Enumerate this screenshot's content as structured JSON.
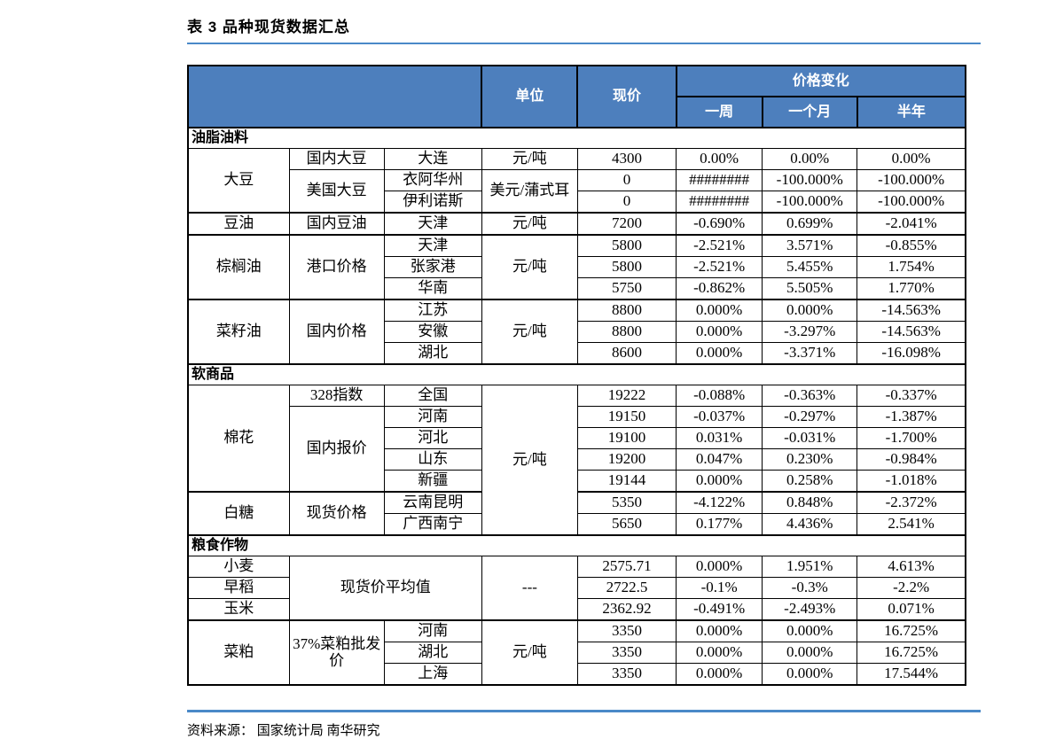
{
  "page": {
    "title": "表 3 品种现货数据汇总",
    "source": "资料来源： 国家统计局 南华研究"
  },
  "colors": {
    "header_bg": "#4D7FBD",
    "header_text": "#ffffff",
    "accent_rule": "#4A89C8",
    "grid": "#000000"
  },
  "table": {
    "column_headers": [
      "",
      "单位",
      "现价",
      "价格变化",
      "一周",
      "一个月",
      "半年"
    ],
    "rows": [
      {
        "cls": "hdr",
        "cells": [
          {
            "t": "",
            "cs": 3,
            "rs": 2
          },
          {
            "t": "单位",
            "rs": 2
          },
          {
            "t": "现价",
            "rs": 2
          },
          {
            "t": "价格变化",
            "cs": 3
          }
        ]
      },
      {
        "cls": "hdr",
        "cells": [
          {
            "t": "一周"
          },
          {
            "t": "一个月"
          },
          {
            "t": "半年"
          }
        ]
      },
      {
        "cls": "section",
        "cells": [
          {
            "t": "油脂油料",
            "cs": 8
          }
        ]
      },
      {
        "cls": "",
        "cells": [
          {
            "t": "大豆",
            "rs": 3
          },
          {
            "t": "国内大豆"
          },
          {
            "t": "大连"
          },
          {
            "t": "元/吨"
          },
          {
            "t": "4300"
          },
          {
            "t": "0.00%"
          },
          {
            "t": "0.00%"
          },
          {
            "t": "0.00%"
          }
        ]
      },
      {
        "cls": "",
        "cells": [
          {
            "t": "美国大豆",
            "rs": 2
          },
          {
            "t": "衣阿华州"
          },
          {
            "t": "美元/蒲式耳",
            "rs": 2,
            "cls": "nowrap"
          },
          {
            "t": "0"
          },
          {
            "t": "########"
          },
          {
            "t": "-100.000%"
          },
          {
            "t": "-100.000%"
          }
        ]
      },
      {
        "cls": "",
        "cells": [
          {
            "t": "伊利诺斯"
          },
          {
            "t": "0"
          },
          {
            "t": "########"
          },
          {
            "t": "-100.000%"
          },
          {
            "t": "-100.000%"
          }
        ]
      },
      {
        "cls": "gtop",
        "cells": [
          {
            "t": "豆油"
          },
          {
            "t": "国内豆油"
          },
          {
            "t": "天津"
          },
          {
            "t": "元/吨"
          },
          {
            "t": "7200"
          },
          {
            "t": "-0.690%"
          },
          {
            "t": "0.699%"
          },
          {
            "t": "-2.041%"
          }
        ]
      },
      {
        "cls": "gtop",
        "cells": [
          {
            "t": "棕榈油",
            "rs": 3
          },
          {
            "t": "港口价格",
            "rs": 3
          },
          {
            "t": "天津"
          },
          {
            "t": "元/吨",
            "rs": 3
          },
          {
            "t": "5800"
          },
          {
            "t": "-2.521%"
          },
          {
            "t": "3.571%"
          },
          {
            "t": "-0.855%"
          }
        ]
      },
      {
        "cls": "",
        "cells": [
          {
            "t": "张家港"
          },
          {
            "t": "5800"
          },
          {
            "t": "-2.521%"
          },
          {
            "t": "5.455%"
          },
          {
            "t": "1.754%"
          }
        ]
      },
      {
        "cls": "",
        "cells": [
          {
            "t": "华南"
          },
          {
            "t": "5750"
          },
          {
            "t": "-0.862%"
          },
          {
            "t": "5.505%"
          },
          {
            "t": "1.770%"
          }
        ]
      },
      {
        "cls": "gtop",
        "cells": [
          {
            "t": "菜籽油",
            "rs": 3
          },
          {
            "t": "国内价格",
            "rs": 3
          },
          {
            "t": "江苏"
          },
          {
            "t": "元/吨",
            "rs": 3
          },
          {
            "t": "8800"
          },
          {
            "t": "0.000%"
          },
          {
            "t": "0.000%"
          },
          {
            "t": "-14.563%"
          }
        ]
      },
      {
        "cls": "",
        "cells": [
          {
            "t": "安徽"
          },
          {
            "t": "8800"
          },
          {
            "t": "0.000%"
          },
          {
            "t": "-3.297%"
          },
          {
            "t": "-14.563%"
          }
        ]
      },
      {
        "cls": "",
        "cells": [
          {
            "t": "湖北"
          },
          {
            "t": "8600"
          },
          {
            "t": "0.000%"
          },
          {
            "t": "-3.371%"
          },
          {
            "t": "-16.098%"
          }
        ]
      },
      {
        "cls": "section",
        "cells": [
          {
            "t": "软商品",
            "cs": 8
          }
        ]
      },
      {
        "cls": "",
        "cells": [
          {
            "t": "棉花",
            "rs": 5
          },
          {
            "t": "328指数"
          },
          {
            "t": "全国"
          },
          {
            "t": "元/吨",
            "rs": 7
          },
          {
            "t": "19222"
          },
          {
            "t": "-0.088%"
          },
          {
            "t": "-0.363%"
          },
          {
            "t": "-0.337%"
          }
        ]
      },
      {
        "cls": "",
        "cells": [
          {
            "t": "国内报价",
            "rs": 4
          },
          {
            "t": "河南"
          },
          {
            "t": "19150"
          },
          {
            "t": "-0.037%"
          },
          {
            "t": "-0.297%"
          },
          {
            "t": "-1.387%"
          }
        ]
      },
      {
        "cls": "",
        "cells": [
          {
            "t": "河北"
          },
          {
            "t": "19100"
          },
          {
            "t": "0.031%"
          },
          {
            "t": "-0.031%"
          },
          {
            "t": "-1.700%"
          }
        ]
      },
      {
        "cls": "",
        "cells": [
          {
            "t": "山东"
          },
          {
            "t": "19200"
          },
          {
            "t": "0.047%"
          },
          {
            "t": "0.230%"
          },
          {
            "t": "-0.984%"
          }
        ]
      },
      {
        "cls": "",
        "cells": [
          {
            "t": "新疆"
          },
          {
            "t": "19144"
          },
          {
            "t": "0.000%"
          },
          {
            "t": "0.258%"
          },
          {
            "t": "-1.018%"
          }
        ]
      },
      {
        "cls": "gtop",
        "cells": [
          {
            "t": "白糖",
            "rs": 2
          },
          {
            "t": "现货价格",
            "rs": 2
          },
          {
            "t": "云南昆明"
          },
          {
            "t": "5350"
          },
          {
            "t": "-4.122%"
          },
          {
            "t": "0.848%"
          },
          {
            "t": "-2.372%"
          }
        ]
      },
      {
        "cls": "",
        "cells": [
          {
            "t": "广西南宁"
          },
          {
            "t": "5650"
          },
          {
            "t": "0.177%"
          },
          {
            "t": "4.436%"
          },
          {
            "t": "2.541%"
          }
        ]
      },
      {
        "cls": "section",
        "cells": [
          {
            "t": "粮食作物",
            "cs": 8
          }
        ]
      },
      {
        "cls": "",
        "cells": [
          {
            "t": "小麦"
          },
          {
            "t": "现货价平均值",
            "cs": 2,
            "rs": 3
          },
          {
            "t": "---",
            "rs": 3
          },
          {
            "t": "2575.71"
          },
          {
            "t": "0.000%"
          },
          {
            "t": "1.951%"
          },
          {
            "t": "4.613%"
          }
        ]
      },
      {
        "cls": "",
        "cells": [
          {
            "t": "早稻"
          },
          {
            "t": "2722.5"
          },
          {
            "t": "-0.1%"
          },
          {
            "t": "-0.3%"
          },
          {
            "t": "-2.2%"
          }
        ]
      },
      {
        "cls": "",
        "cells": [
          {
            "t": "玉米"
          },
          {
            "t": "2362.92"
          },
          {
            "t": "-0.491%"
          },
          {
            "t": "-2.493%"
          },
          {
            "t": "0.071%"
          }
        ]
      },
      {
        "cls": "gtop",
        "cells": [
          {
            "t": "菜粕",
            "rs": 3
          },
          {
            "t": "37%菜粕批发价",
            "rs": 3
          },
          {
            "t": "河南"
          },
          {
            "t": "元/吨",
            "rs": 3
          },
          {
            "t": "3350"
          },
          {
            "t": "0.000%"
          },
          {
            "t": "0.000%"
          },
          {
            "t": "16.725%"
          }
        ]
      },
      {
        "cls": "",
        "cells": [
          {
            "t": "湖北"
          },
          {
            "t": "3350"
          },
          {
            "t": "0.000%"
          },
          {
            "t": "0.000%"
          },
          {
            "t": "16.725%"
          }
        ]
      },
      {
        "cls": "",
        "cells": [
          {
            "t": "上海"
          },
          {
            "t": "3350"
          },
          {
            "t": "0.000%"
          },
          {
            "t": "0.000%"
          },
          {
            "t": "17.544%"
          }
        ]
      }
    ]
  }
}
